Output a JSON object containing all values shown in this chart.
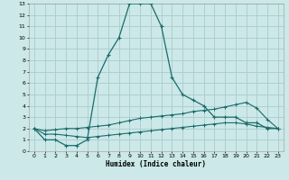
{
  "title": "",
  "xlabel": "Humidex (Indice chaleur)",
  "bg_color": "#cce8e8",
  "grid_color": "#aacccc",
  "line_color": "#1a6b6b",
  "xlim": [
    -0.5,
    23.5
  ],
  "ylim": [
    0,
    13
  ],
  "xticks": [
    0,
    1,
    2,
    3,
    4,
    5,
    6,
    7,
    8,
    9,
    10,
    11,
    12,
    13,
    14,
    15,
    16,
    17,
    18,
    19,
    20,
    21,
    22,
    23
  ],
  "yticks": [
    0,
    1,
    2,
    3,
    4,
    5,
    6,
    7,
    8,
    9,
    10,
    11,
    12,
    13
  ],
  "line1_x": [
    0,
    1,
    2,
    3,
    4,
    5,
    6,
    7,
    8,
    9,
    10,
    11,
    12,
    13,
    14,
    15,
    16,
    17,
    18,
    19,
    20,
    21,
    22,
    23
  ],
  "line1_y": [
    2,
    1,
    1,
    0.5,
    0.5,
    1,
    6.5,
    8.5,
    10,
    13,
    13,
    13,
    11,
    6.5,
    5,
    4.5,
    4,
    3,
    3,
    3,
    2.5,
    2.5,
    2,
    2
  ],
  "line2_x": [
    0,
    1,
    2,
    3,
    4,
    5,
    6,
    7,
    8,
    9,
    10,
    11,
    12,
    13,
    14,
    15,
    16,
    17,
    18,
    19,
    20,
    21,
    22,
    23
  ],
  "line2_y": [
    2,
    1.8,
    1.9,
    2.0,
    2.0,
    2.1,
    2.2,
    2.3,
    2.5,
    2.7,
    2.9,
    3.0,
    3.1,
    3.2,
    3.3,
    3.5,
    3.6,
    3.7,
    3.9,
    4.1,
    4.3,
    3.8,
    2.8,
    2
  ],
  "line3_x": [
    0,
    1,
    2,
    3,
    4,
    5,
    6,
    7,
    8,
    9,
    10,
    11,
    12,
    13,
    14,
    15,
    16,
    17,
    18,
    19,
    20,
    21,
    22,
    23
  ],
  "line3_y": [
    2,
    1.5,
    1.5,
    1.4,
    1.3,
    1.2,
    1.3,
    1.4,
    1.5,
    1.6,
    1.7,
    1.8,
    1.9,
    2.0,
    2.1,
    2.2,
    2.3,
    2.4,
    2.5,
    2.5,
    2.4,
    2.2,
    2.1,
    2
  ]
}
